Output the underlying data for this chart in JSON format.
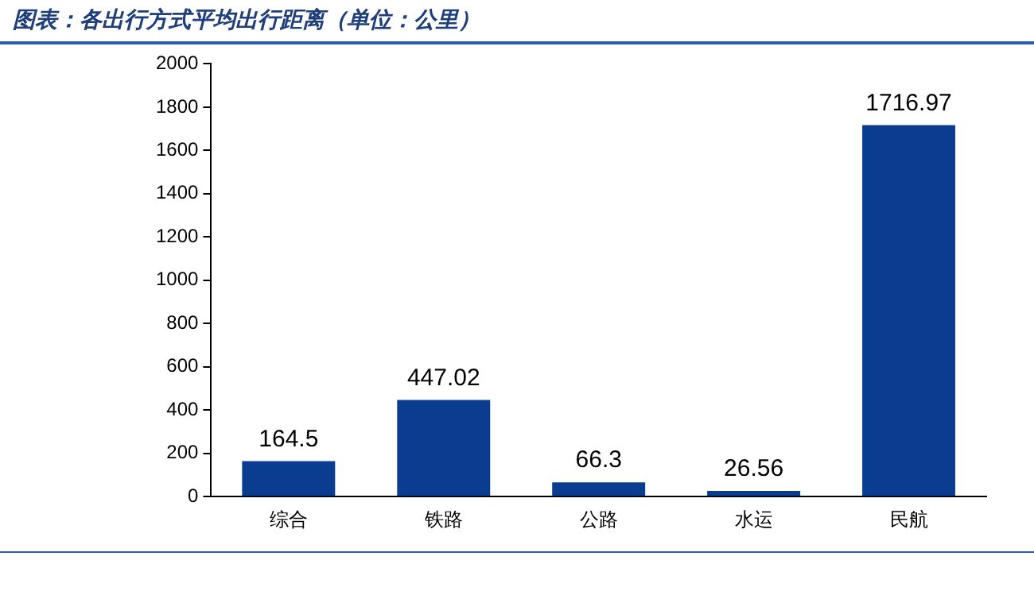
{
  "chart_data": {
    "type": "bar",
    "title": "图表：各出行方式平均出行距离（单位：公里）",
    "categories": [
      "综合",
      "铁路",
      "公路",
      "水运",
      "民航"
    ],
    "values": [
      164.5,
      447.02,
      66.3,
      26.56,
      1716.97
    ],
    "color": "#0a3d8f",
    "ylim": [
      0,
      2000
    ],
    "yticks": [
      0,
      200,
      400,
      600,
      800,
      1000,
      1200,
      1400,
      1600,
      1800,
      2000
    ],
    "grid": false,
    "data_labels": true
  }
}
